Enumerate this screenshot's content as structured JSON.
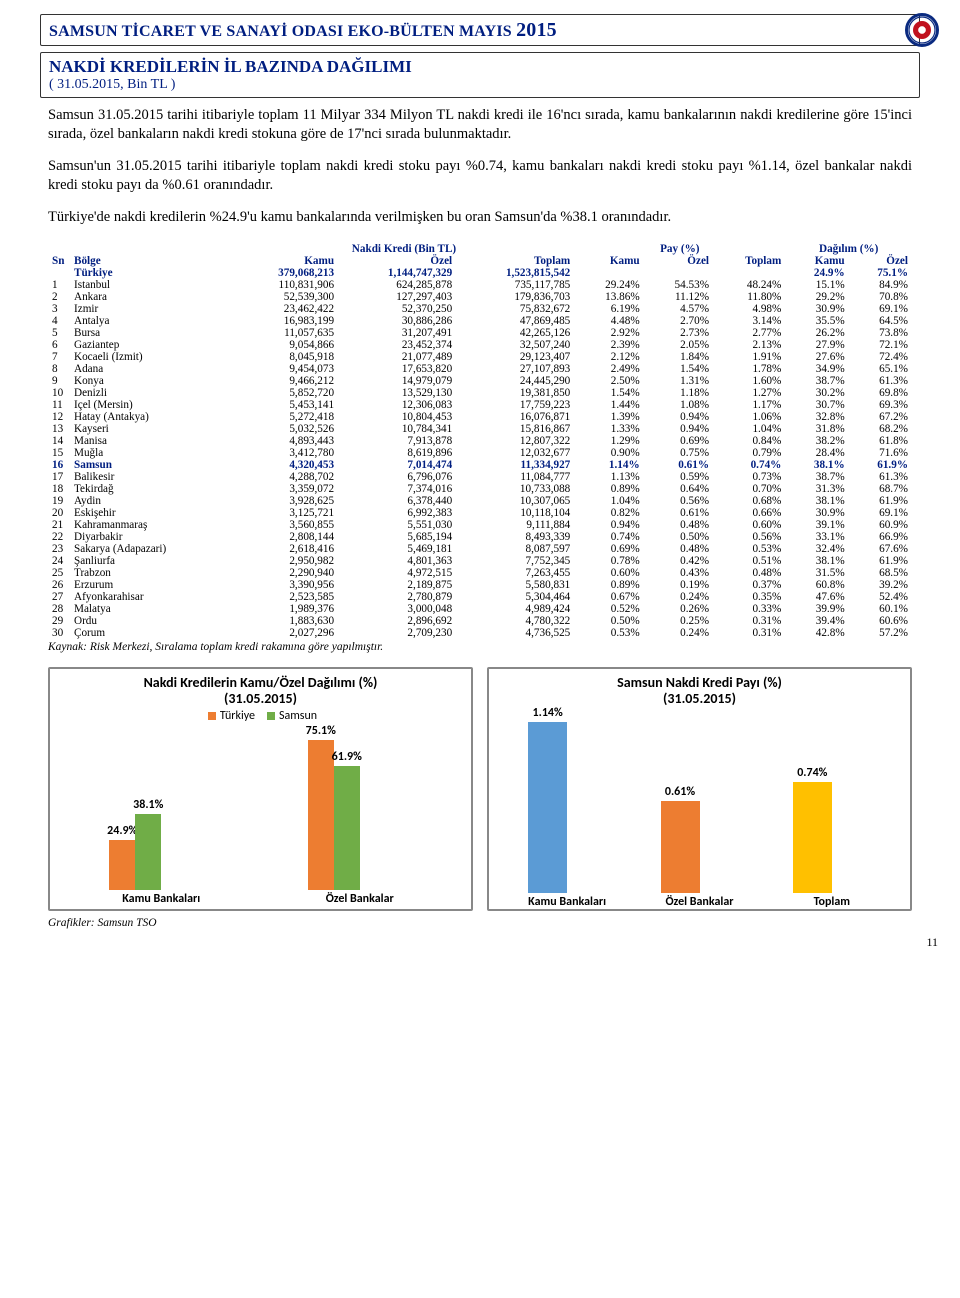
{
  "header": {
    "title_prefix": "SAMSUN TİCARET VE SANAYİ ODASI EKO-BÜLTEN MAYIS ",
    "year": "2015"
  },
  "section": {
    "title": "NAKDİ KREDİLERİN İL BAZINDA DAĞILIMI",
    "subtitle": "( 31.05.2015, Bin TL )"
  },
  "paragraphs": [
    "Samsun 31.05.2015 tarihi itibariyle toplam 11 Milyar 334 Milyon TL nakdi kredi ile 16'ncı sırada, kamu bankalarının nakdi kredilerine göre 15'inci sırada, özel bankaların nakdi kredi stokuna göre de 17'nci sırada bulunmaktadır.",
    "Samsun'un 31.05.2015 tarihi itibariyle toplam nakdi kredi stoku payı %0.74, kamu bankaları nakdi kredi stoku payı %1.14, özel bankalar nakdi kredi stoku payı da %0.61 oranındadır.",
    "Türkiye'de nakdi kredilerin %24.9'u kamu bankalarında verilmişken bu oran Samsun'da %38.1 oranındadır."
  ],
  "table": {
    "header1": {
      "sn": "Sn",
      "bolge": "Bölge",
      "krediGroup": "Nakdi Kredi (Bin TL)",
      "payGroup": "Pay (%)",
      "dagGroup": "Dağılım (%)"
    },
    "header2": {
      "kamu": "Kamu",
      "ozel": "Özel",
      "toplam": "Toplam",
      "pkamu": "Kamu",
      "pozel": "Özel",
      "ptoplam": "Toplam",
      "dkamu": "Kamu",
      "dozel": "Özel"
    },
    "turkiye": {
      "name": "Türkiye",
      "kamu": "379,068,213",
      "ozel": "1,144,747,329",
      "toplam": "1,523,815,542",
      "dkamu": "24.9%",
      "dozel": "75.1%"
    },
    "rows": [
      {
        "sn": "1",
        "name": "Istanbul",
        "kamu": "110,831,906",
        "ozel": "624,285,878",
        "toplam": "735,117,785",
        "pk": "29.24%",
        "po": "54.53%",
        "pt": "48.24%",
        "dk": "15.1%",
        "do": "84.9%"
      },
      {
        "sn": "2",
        "name": "Ankara",
        "kamu": "52,539,300",
        "ozel": "127,297,403",
        "toplam": "179,836,703",
        "pk": "13.86%",
        "po": "11.12%",
        "pt": "11.80%",
        "dk": "29.2%",
        "do": "70.8%"
      },
      {
        "sn": "3",
        "name": "Izmir",
        "kamu": "23,462,422",
        "ozel": "52,370,250",
        "toplam": "75,832,672",
        "pk": "6.19%",
        "po": "4.57%",
        "pt": "4.98%",
        "dk": "30.9%",
        "do": "69.1%"
      },
      {
        "sn": "4",
        "name": "Antalya",
        "kamu": "16,983,199",
        "ozel": "30,886,286",
        "toplam": "47,869,485",
        "pk": "4.48%",
        "po": "2.70%",
        "pt": "3.14%",
        "dk": "35.5%",
        "do": "64.5%"
      },
      {
        "sn": "5",
        "name": "Bursa",
        "kamu": "11,057,635",
        "ozel": "31,207,491",
        "toplam": "42,265,126",
        "pk": "2.92%",
        "po": "2.73%",
        "pt": "2.77%",
        "dk": "26.2%",
        "do": "73.8%"
      },
      {
        "sn": "6",
        "name": "Gaziantep",
        "kamu": "9,054,866",
        "ozel": "23,452,374",
        "toplam": "32,507,240",
        "pk": "2.39%",
        "po": "2.05%",
        "pt": "2.13%",
        "dk": "27.9%",
        "do": "72.1%"
      },
      {
        "sn": "7",
        "name": "Kocaeli (Izmit)",
        "kamu": "8,045,918",
        "ozel": "21,077,489",
        "toplam": "29,123,407",
        "pk": "2.12%",
        "po": "1.84%",
        "pt": "1.91%",
        "dk": "27.6%",
        "do": "72.4%"
      },
      {
        "sn": "8",
        "name": "Adana",
        "kamu": "9,454,073",
        "ozel": "17,653,820",
        "toplam": "27,107,893",
        "pk": "2.49%",
        "po": "1.54%",
        "pt": "1.78%",
        "dk": "34.9%",
        "do": "65.1%"
      },
      {
        "sn": "9",
        "name": "Konya",
        "kamu": "9,466,212",
        "ozel": "14,979,079",
        "toplam": "24,445,290",
        "pk": "2.50%",
        "po": "1.31%",
        "pt": "1.60%",
        "dk": "38.7%",
        "do": "61.3%"
      },
      {
        "sn": "10",
        "name": "Denizli",
        "kamu": "5,852,720",
        "ozel": "13,529,130",
        "toplam": "19,381,850",
        "pk": "1.54%",
        "po": "1.18%",
        "pt": "1.27%",
        "dk": "30.2%",
        "do": "69.8%"
      },
      {
        "sn": "11",
        "name": "Içel (Mersin)",
        "kamu": "5,453,141",
        "ozel": "12,306,083",
        "toplam": "17,759,223",
        "pk": "1.44%",
        "po": "1.08%",
        "pt": "1.17%",
        "dk": "30.7%",
        "do": "69.3%"
      },
      {
        "sn": "12",
        "name": "Hatay (Antakya)",
        "kamu": "5,272,418",
        "ozel": "10,804,453",
        "toplam": "16,076,871",
        "pk": "1.39%",
        "po": "0.94%",
        "pt": "1.06%",
        "dk": "32.8%",
        "do": "67.2%"
      },
      {
        "sn": "13",
        "name": "Kayseri",
        "kamu": "5,032,526",
        "ozel": "10,784,341",
        "toplam": "15,816,867",
        "pk": "1.33%",
        "po": "0.94%",
        "pt": "1.04%",
        "dk": "31.8%",
        "do": "68.2%"
      },
      {
        "sn": "14",
        "name": "Manisa",
        "kamu": "4,893,443",
        "ozel": "7,913,878",
        "toplam": "12,807,322",
        "pk": "1.29%",
        "po": "0.69%",
        "pt": "0.84%",
        "dk": "38.2%",
        "do": "61.8%"
      },
      {
        "sn": "15",
        "name": "Muğla",
        "kamu": "3,412,780",
        "ozel": "8,619,896",
        "toplam": "12,032,677",
        "pk": "0.90%",
        "po": "0.75%",
        "pt": "0.79%",
        "dk": "28.4%",
        "do": "71.6%"
      },
      {
        "sn": "16",
        "name": "Samsun",
        "kamu": "4,320,453",
        "ozel": "7,014,474",
        "toplam": "11,334,927",
        "pk": "1.14%",
        "po": "0.61%",
        "pt": "0.74%",
        "dk": "38.1%",
        "do": "61.9%",
        "hl": true
      },
      {
        "sn": "17",
        "name": "Balikesir",
        "kamu": "4,288,702",
        "ozel": "6,796,076",
        "toplam": "11,084,777",
        "pk": "1.13%",
        "po": "0.59%",
        "pt": "0.73%",
        "dk": "38.7%",
        "do": "61.3%"
      },
      {
        "sn": "18",
        "name": "Tekirdağ",
        "kamu": "3,359,072",
        "ozel": "7,374,016",
        "toplam": "10,733,088",
        "pk": "0.89%",
        "po": "0.64%",
        "pt": "0.70%",
        "dk": "31.3%",
        "do": "68.7%"
      },
      {
        "sn": "19",
        "name": "Aydin",
        "kamu": "3,928,625",
        "ozel": "6,378,440",
        "toplam": "10,307,065",
        "pk": "1.04%",
        "po": "0.56%",
        "pt": "0.68%",
        "dk": "38.1%",
        "do": "61.9%"
      },
      {
        "sn": "20",
        "name": "Eskişehir",
        "kamu": "3,125,721",
        "ozel": "6,992,383",
        "toplam": "10,118,104",
        "pk": "0.82%",
        "po": "0.61%",
        "pt": "0.66%",
        "dk": "30.9%",
        "do": "69.1%"
      },
      {
        "sn": "21",
        "name": "Kahramanmaraş",
        "kamu": "3,560,855",
        "ozel": "5,551,030",
        "toplam": "9,111,884",
        "pk": "0.94%",
        "po": "0.48%",
        "pt": "0.60%",
        "dk": "39.1%",
        "do": "60.9%"
      },
      {
        "sn": "22",
        "name": "Diyarbakir",
        "kamu": "2,808,144",
        "ozel": "5,685,194",
        "toplam": "8,493,339",
        "pk": "0.74%",
        "po": "0.50%",
        "pt": "0.56%",
        "dk": "33.1%",
        "do": "66.9%"
      },
      {
        "sn": "23",
        "name": "Sakarya (Adapazari)",
        "kamu": "2,618,416",
        "ozel": "5,469,181",
        "toplam": "8,087,597",
        "pk": "0.69%",
        "po": "0.48%",
        "pt": "0.53%",
        "dk": "32.4%",
        "do": "67.6%"
      },
      {
        "sn": "24",
        "name": "Şanliurfa",
        "kamu": "2,950,982",
        "ozel": "4,801,363",
        "toplam": "7,752,345",
        "pk": "0.78%",
        "po": "0.42%",
        "pt": "0.51%",
        "dk": "38.1%",
        "do": "61.9%"
      },
      {
        "sn": "25",
        "name": "Trabzon",
        "kamu": "2,290,940",
        "ozel": "4,972,515",
        "toplam": "7,263,455",
        "pk": "0.60%",
        "po": "0.43%",
        "pt": "0.48%",
        "dk": "31.5%",
        "do": "68.5%"
      },
      {
        "sn": "26",
        "name": "Erzurum",
        "kamu": "3,390,956",
        "ozel": "2,189,875",
        "toplam": "5,580,831",
        "pk": "0.89%",
        "po": "0.19%",
        "pt": "0.37%",
        "dk": "60.8%",
        "do": "39.2%"
      },
      {
        "sn": "27",
        "name": "Afyonkarahisar",
        "kamu": "2,523,585",
        "ozel": "2,780,879",
        "toplam": "5,304,464",
        "pk": "0.67%",
        "po": "0.24%",
        "pt": "0.35%",
        "dk": "47.6%",
        "do": "52.4%"
      },
      {
        "sn": "28",
        "name": "Malatya",
        "kamu": "1,989,376",
        "ozel": "3,000,048",
        "toplam": "4,989,424",
        "pk": "0.52%",
        "po": "0.26%",
        "pt": "0.33%",
        "dk": "39.9%",
        "do": "60.1%"
      },
      {
        "sn": "29",
        "name": "Ordu",
        "kamu": "1,883,630",
        "ozel": "2,896,692",
        "toplam": "4,780,322",
        "pk": "0.50%",
        "po": "0.25%",
        "pt": "0.31%",
        "dk": "39.4%",
        "do": "60.6%"
      },
      {
        "sn": "30",
        "name": "Çorum",
        "kamu": "2,027,296",
        "ozel": "2,709,230",
        "toplam": "4,736,525",
        "pk": "0.53%",
        "po": "0.24%",
        "pt": "0.31%",
        "dk": "42.8%",
        "do": "57.2%"
      }
    ],
    "source": "Kaynak: Risk Merkezi, Sıralama toplam kredi rakamına göre yapılmıştır."
  },
  "chart1": {
    "title": "Nakdi Kredilerin Kamu/Özel Dağılımı (%)\n(31.05.2015)",
    "legend": [
      {
        "label": "Türkiye",
        "color": "#ed7d31"
      },
      {
        "label": "Samsun",
        "color": "#70ad47"
      }
    ],
    "ymax": 80,
    "groups": [
      {
        "cat": "Kamu Bankaları",
        "bars": [
          {
            "v": 24.9,
            "lbl": "24.9%",
            "color": "#ed7d31"
          },
          {
            "v": 38.1,
            "lbl": "38.1%",
            "color": "#70ad47"
          }
        ]
      },
      {
        "cat": "Özel Bankalar",
        "bars": [
          {
            "v": 75.1,
            "lbl": "75.1%",
            "color": "#ed7d31"
          },
          {
            "v": 61.9,
            "lbl": "61.9%",
            "color": "#70ad47"
          }
        ]
      }
    ]
  },
  "chart2": {
    "title": "Samsun Nakdi Kredi Payı (%)\n(31.05.2015)",
    "ymax": 1.2,
    "groups": [
      {
        "cat": "Kamu Bankaları",
        "bars": [
          {
            "v": 1.14,
            "lbl": "1.14%",
            "color": "#5b9bd5"
          }
        ]
      },
      {
        "cat": "Özel Bankalar",
        "bars": [
          {
            "v": 0.61,
            "lbl": "0.61%",
            "color": "#ed7d31"
          }
        ]
      },
      {
        "cat": "Toplam",
        "bars": [
          {
            "v": 0.74,
            "lbl": "0.74%",
            "color": "#ffc000"
          }
        ]
      }
    ]
  },
  "chart_source": "Grafikler: Samsun TSO",
  "pagenum": "11"
}
